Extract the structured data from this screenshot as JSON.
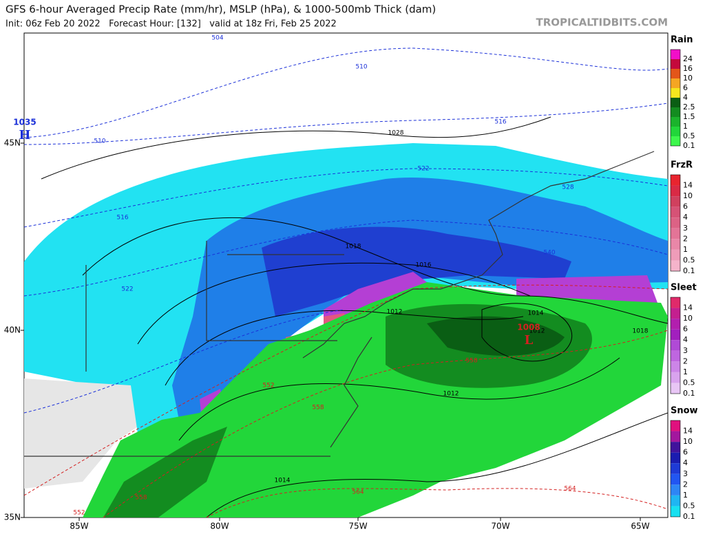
{
  "header": {
    "title": "GFS 6-hour Averaged Precip Rate (mm/hr), MSLP (hPa), & 1000-500mb Thick (dam)",
    "subtitle": "Init: 06z Feb 20 2022   Forecast Hour: [132]   valid at 18z Fri, Feb 25 2022",
    "watermark": "TROPICALTIDBITS.COM"
  },
  "axes": {
    "latitude_labels": [
      "45N",
      "40N",
      "35N"
    ],
    "longitude_labels": [
      "85W",
      "80W",
      "75W",
      "70W",
      "65W"
    ]
  },
  "legends": [
    {
      "title": "Rain",
      "items": [
        {
          "label": "24",
          "color": "#f20ec9"
        },
        {
          "label": "16",
          "color": "#c4093c"
        },
        {
          "label": "10",
          "color": "#e3561a"
        },
        {
          "label": "6",
          "color": "#f5a623"
        },
        {
          "label": "4",
          "color": "#f5e61e"
        },
        {
          "label": "2.5",
          "color": "#0a5e14"
        },
        {
          "label": "1.5",
          "color": "#138c20"
        },
        {
          "label": "1",
          "color": "#1bb32c"
        },
        {
          "label": "0.5",
          "color": "#22d63a"
        },
        {
          "label": "0.1",
          "color": "#3df74c"
        }
      ]
    },
    {
      "title": "FrzR",
      "items": [
        {
          "label": "14",
          "color": "#e8242f"
        },
        {
          "label": "10",
          "color": "#d92a45"
        },
        {
          "label": "6",
          "color": "#d0405e"
        },
        {
          "label": "4",
          "color": "#d65276"
        },
        {
          "label": "3",
          "color": "#dc6285"
        },
        {
          "label": "2",
          "color": "#e37497"
        },
        {
          "label": "1",
          "color": "#e987a8"
        },
        {
          "label": "0.5",
          "color": "#ef9cb9"
        },
        {
          "label": "0.1",
          "color": "#f5b4cb"
        }
      ]
    },
    {
      "title": "Sleet",
      "items": [
        {
          "label": "14",
          "color": "#e02a6a"
        },
        {
          "label": "10",
          "color": "#c41f8f"
        },
        {
          "label": "6",
          "color": "#b21fae"
        },
        {
          "label": "4",
          "color": "#a21fbe"
        },
        {
          "label": "3",
          "color": "#b04ad6"
        },
        {
          "label": "2",
          "color": "#bf66e0"
        },
        {
          "label": "1",
          "color": "#cc85e8"
        },
        {
          "label": "0.5",
          "color": "#d9a3ee"
        },
        {
          "label": "0.1",
          "color": "#e8c6f5"
        }
      ]
    },
    {
      "title": "Snow",
      "items": [
        {
          "label": "14",
          "color": "#e0107e"
        },
        {
          "label": "10",
          "color": "#a3179e"
        },
        {
          "label": "6",
          "color": "#40139c"
        },
        {
          "label": "4",
          "color": "#1a1cb0"
        },
        {
          "label": "3",
          "color": "#1e3ad6"
        },
        {
          "label": "2",
          "color": "#2156f2"
        },
        {
          "label": "1",
          "color": "#2d86f5"
        },
        {
          "label": "0.5",
          "color": "#1fb6f2"
        },
        {
          "label": "0.1",
          "color": "#18e0f0"
        }
      ]
    }
  ],
  "map_labels": {
    "highs": [
      {
        "value": "1035",
        "symbol": "H"
      }
    ],
    "lows": [
      {
        "value": "1008",
        "symbol": "L"
      }
    ],
    "isobars": [
      "1028",
      "1018",
      "1016",
      "1012",
      "1014",
      "1012",
      "1012",
      "1018",
      "1014"
    ],
    "thickness": [
      "504",
      "510",
      "510",
      "516",
      "516",
      "522",
      "522",
      "528",
      "540",
      "552",
      "558",
      "558",
      "564",
      "564",
      "552",
      "558"
    ]
  }
}
